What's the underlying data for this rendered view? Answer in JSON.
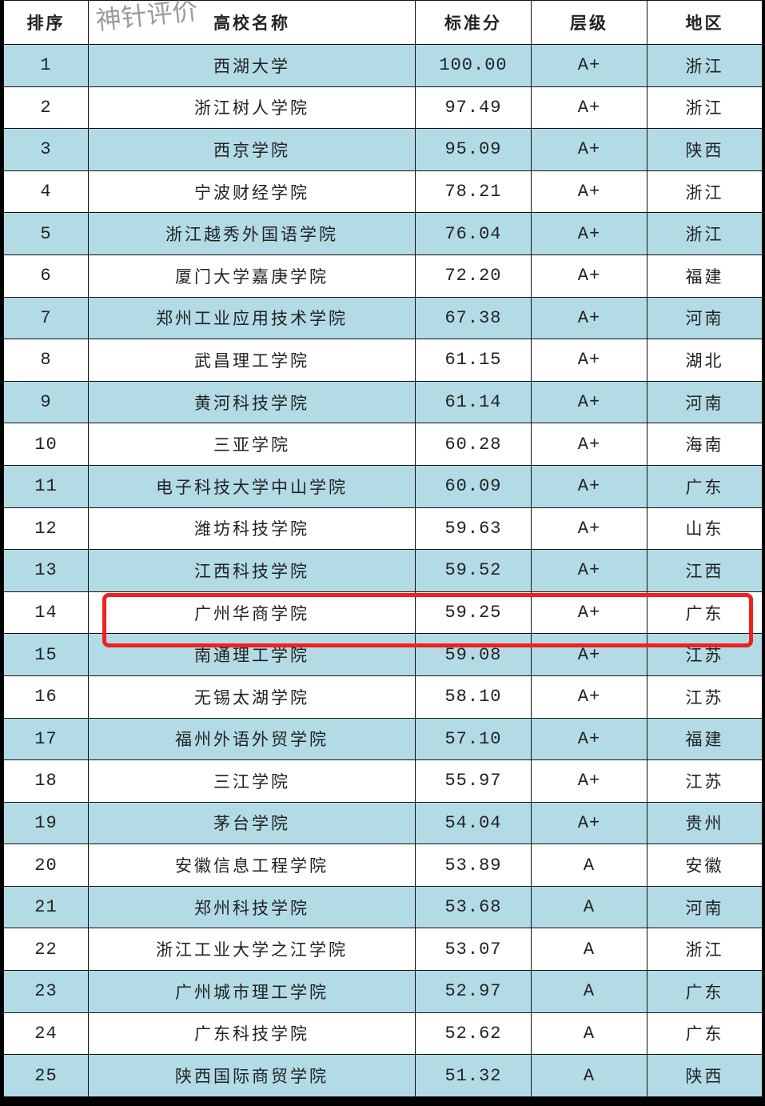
{
  "headers": [
    "排序",
    "高校名称",
    "标准分",
    "层级",
    "地区"
  ],
  "watermark": "神针评价",
  "highlight_color": "#f02020",
  "row_color": "#b3dbe6",
  "highlighted_rank": 14,
  "rows": [
    [
      "1",
      "西湖大学",
      "100.00",
      "A+",
      "浙江"
    ],
    [
      "2",
      "浙江树人学院",
      "97.49",
      "A+",
      "浙江"
    ],
    [
      "3",
      "西京学院",
      "95.09",
      "A+",
      "陕西"
    ],
    [
      "4",
      "宁波财经学院",
      "78.21",
      "A+",
      "浙江"
    ],
    [
      "5",
      "浙江越秀外国语学院",
      "76.04",
      "A+",
      "浙江"
    ],
    [
      "6",
      "厦门大学嘉庚学院",
      "72.20",
      "A+",
      "福建"
    ],
    [
      "7",
      "郑州工业应用技术学院",
      "67.38",
      "A+",
      "河南"
    ],
    [
      "8",
      "武昌理工学院",
      "61.15",
      "A+",
      "湖北"
    ],
    [
      "9",
      "黄河科技学院",
      "61.14",
      "A+",
      "河南"
    ],
    [
      "10",
      "三亚学院",
      "60.28",
      "A+",
      "海南"
    ],
    [
      "11",
      "电子科技大学中山学院",
      "60.09",
      "A+",
      "广东"
    ],
    [
      "12",
      "潍坊科技学院",
      "59.63",
      "A+",
      "山东"
    ],
    [
      "13",
      "江西科技学院",
      "59.52",
      "A+",
      "江西"
    ],
    [
      "14",
      "广州华商学院",
      "59.25",
      "A+",
      "广东"
    ],
    [
      "15",
      "南通理工学院",
      "59.08",
      "A+",
      "江苏"
    ],
    [
      "16",
      "无锡太湖学院",
      "58.10",
      "A+",
      "江苏"
    ],
    [
      "17",
      "福州外语外贸学院",
      "57.10",
      "A+",
      "福建"
    ],
    [
      "18",
      "三江学院",
      "55.97",
      "A+",
      "江苏"
    ],
    [
      "19",
      "茅台学院",
      "54.04",
      "A+",
      "贵州"
    ],
    [
      "20",
      "安徽信息工程学院",
      "53.89",
      "A",
      "安徽"
    ],
    [
      "21",
      "郑州科技学院",
      "53.68",
      "A",
      "河南"
    ],
    [
      "22",
      "浙江工业大学之江学院",
      "53.07",
      "A",
      "浙江"
    ],
    [
      "23",
      "广州城市理工学院",
      "52.97",
      "A",
      "广东"
    ],
    [
      "24",
      "广东科技学院",
      "52.62",
      "A",
      "广东"
    ],
    [
      "25",
      "陕西国际商贸学院",
      "51.32",
      "A",
      "陕西"
    ]
  ]
}
